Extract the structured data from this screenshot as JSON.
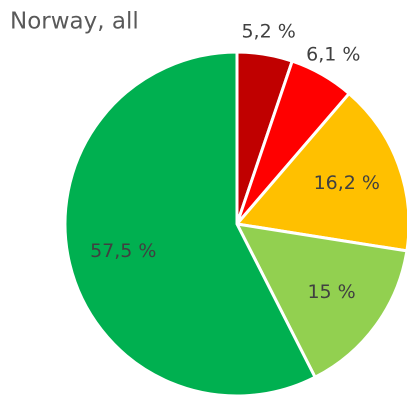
{
  "chart_data": {
    "type": "pie",
    "title": "Norway, all",
    "categories": [
      null,
      null,
      null,
      null,
      null
    ],
    "values": [
      5.2,
      6.1,
      16.2,
      15,
      57.5
    ],
    "value_labels": [
      "5,2 %",
      "6,1 %",
      "16,2 %",
      "15 %",
      "57,5 %"
    ],
    "colors": [
      "#c00000",
      "#ff0000",
      "#ffc000",
      "#92d050",
      "#00b050"
    ]
  }
}
